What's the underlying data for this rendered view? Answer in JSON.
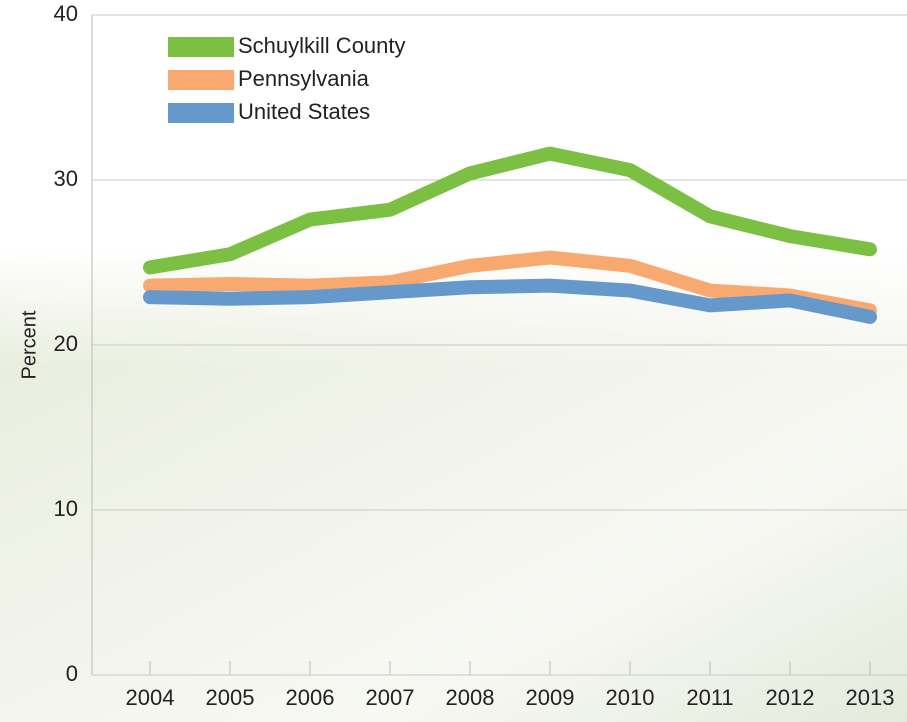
{
  "chart_data": {
    "type": "line",
    "y_label": "Percent",
    "categories": [
      "2004",
      "2005",
      "2006",
      "2007",
      "2008",
      "2009",
      "2010",
      "2011",
      "2012",
      "2013"
    ],
    "series": [
      {
        "name": "Schuylkill County",
        "color": "#7cc043",
        "values": [
          24.7,
          25.5,
          27.6,
          28.2,
          30.4,
          31.6,
          30.6,
          27.8,
          26.6,
          25.8
        ]
      },
      {
        "name": "Pennsylvania",
        "color": "#f8a96f",
        "values": [
          23.6,
          23.7,
          23.6,
          23.8,
          24.8,
          25.3,
          24.8,
          23.3,
          23.0,
          22.1
        ]
      },
      {
        "name": "United States",
        "color": "#6598cb",
        "values": [
          22.9,
          22.8,
          22.9,
          23.2,
          23.5,
          23.6,
          23.3,
          22.4,
          22.7,
          21.7
        ]
      }
    ],
    "ylim": [
      0,
      40
    ],
    "yticks": [
      0,
      10,
      20,
      30,
      40
    ],
    "grid": true,
    "legend": "upper left"
  }
}
